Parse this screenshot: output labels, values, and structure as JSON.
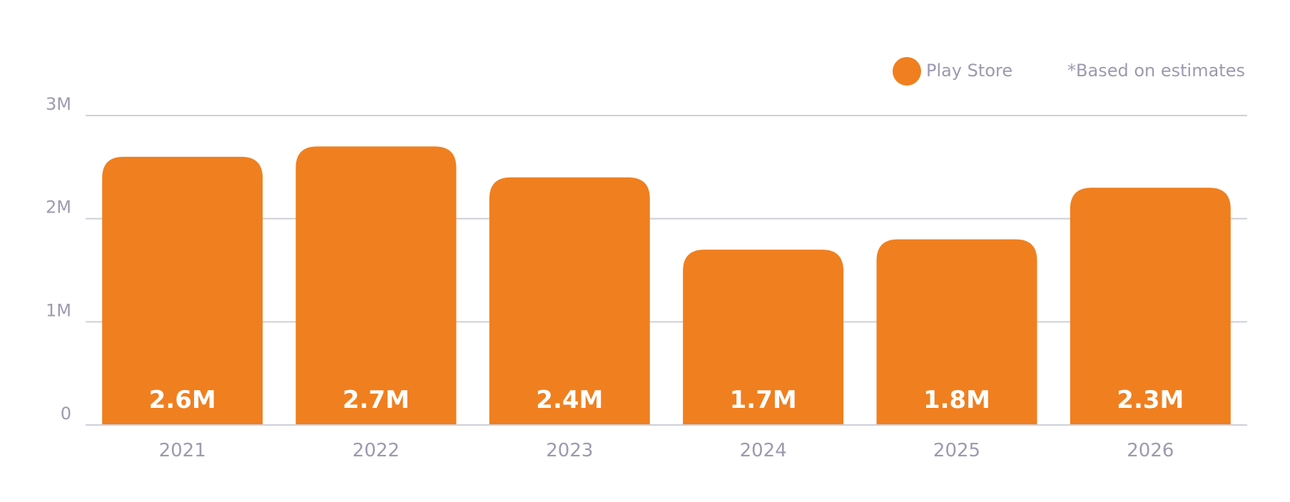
{
  "chart_data": {
    "type": "bar",
    "categories": [
      "2021",
      "2022",
      "2023",
      "2024",
      "2025",
      "2026"
    ],
    "values": [
      2.6,
      2.7,
      2.4,
      1.7,
      1.8,
      2.3
    ],
    "value_labels": [
      "2.6M",
      "2.7M",
      "2.4M",
      "1.7M",
      "1.8M",
      "2.3M"
    ],
    "series": [
      {
        "name": "Play Store",
        "values": [
          2.6,
          2.7,
          2.4,
          1.7,
          1.8,
          2.3
        ]
      }
    ],
    "y_ticks": [
      {
        "value": 0,
        "label": "0"
      },
      {
        "value": 1,
        "label": "1M"
      },
      {
        "value": 2,
        "label": "2M"
      },
      {
        "value": 3,
        "label": "3M"
      }
    ],
    "ylim": [
      0,
      3
    ],
    "note": "*Based on estimates",
    "grid": true,
    "legend_position": "top-right",
    "colors": {
      "bar": "#F07F1F",
      "bar_label": "#FFFFFF",
      "grid": "#CFCFD8",
      "axis_text": "#9C9AAE",
      "legend_text": "#9C9AAE"
    }
  }
}
